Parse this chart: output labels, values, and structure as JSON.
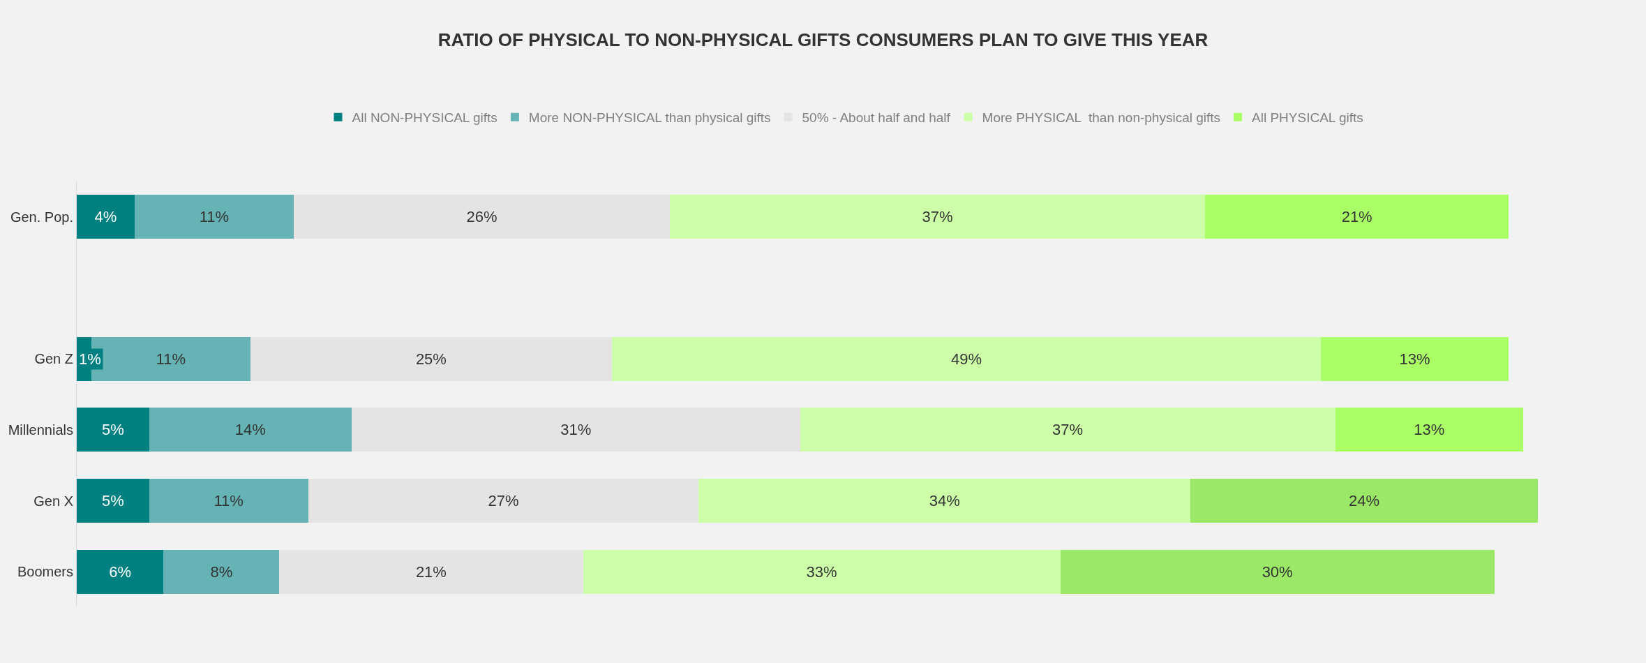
{
  "chart_data": {
    "type": "bar",
    "orientation": "horizontal",
    "stacked": true,
    "title": "RATIO OF PHYSICAL TO NON-PHYSICAL GIFTS CONSUMERS PLAN TO GIVE THIS YEAR",
    "categories": [
      "Gen. Pop.",
      null,
      "Gen Z",
      "Millennials",
      "Gen X",
      "Boomers"
    ],
    "series": [
      {
        "name": "All NON-PHYSICAL gifts",
        "color": "#008080",
        "values": [
          4,
          null,
          1,
          5,
          5,
          6
        ],
        "value_labels": [
          "4%",
          null,
          "1%",
          "5%",
          "5%",
          "6%"
        ]
      },
      {
        "name": "More NON-PHYSICAL than physical gifts",
        "color": "#66b3b5",
        "values": [
          11,
          null,
          11,
          14,
          11,
          8
        ],
        "value_labels": [
          "11%",
          null,
          "11%",
          "14%",
          "11%",
          "8%"
        ]
      },
      {
        "name": "50% - About half and half",
        "color": "#e5e4e2",
        "values": [
          26,
          null,
          25,
          31,
          27,
          21
        ],
        "value_labels": [
          "26%",
          null,
          "25%",
          "31%",
          "27%",
          "21%"
        ]
      },
      {
        "name": "More PHYSICAL  than non-physical gifts",
        "color": "#ccffa8",
        "values": [
          37,
          null,
          49,
          37,
          34,
          33
        ],
        "value_labels": [
          "37%",
          null,
          "49%",
          "37%",
          "34%",
          "33%"
        ]
      },
      {
        "name": "All PHYSICAL gifts",
        "color": "#aaff66",
        "colors": [
          "#aaff66",
          "#aaff66",
          "#aaff66",
          "#aaff66",
          "#9be866",
          "#9be866"
        ],
        "values": [
          21,
          null,
          13,
          13,
          24,
          30
        ],
        "value_labels": [
          "21%",
          null,
          "13%",
          "13%",
          "24%",
          "30%"
        ]
      }
    ],
    "legend": "top"
  }
}
